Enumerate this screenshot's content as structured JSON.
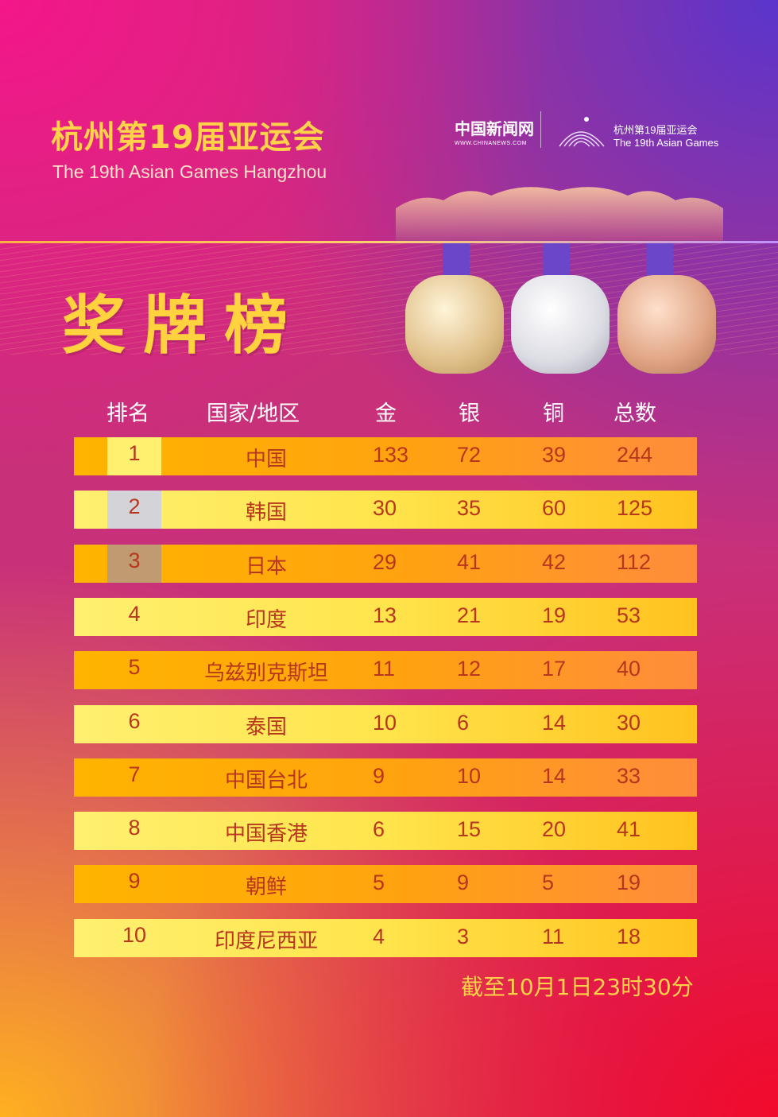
{
  "title_cn": "杭州第19届亚运会",
  "title_en": "The 19th Asian Games Hangzhou",
  "logos": {
    "chinanews": "中国新闻网",
    "chinanews_url": "WWW.CHINANEWS.COM",
    "games_cn": "杭州第19届亚运会",
    "games_en": "The 19th Asian Games"
  },
  "heading": "奖牌榜",
  "columns": [
    "排名",
    "国家/地区",
    "金",
    "银",
    "铜",
    "总数"
  ],
  "rows": [
    {
      "rank": "1",
      "country": "中国",
      "gold": "133",
      "silver": "72",
      "bronze": "39",
      "total": "244"
    },
    {
      "rank": "2",
      "country": "韩国",
      "gold": "30",
      "silver": "35",
      "bronze": "60",
      "total": "125"
    },
    {
      "rank": "3",
      "country": "日本",
      "gold": "29",
      "silver": "41",
      "bronze": "42",
      "total": "112"
    },
    {
      "rank": "4",
      "country": "印度",
      "gold": "13",
      "silver": "21",
      "bronze": "19",
      "total": "53"
    },
    {
      "rank": "5",
      "country": "乌兹别克斯坦",
      "gold": "11",
      "silver": "12",
      "bronze": "17",
      "total": "40"
    },
    {
      "rank": "6",
      "country": "泰国",
      "gold": "10",
      "silver": "6",
      "bronze": "14",
      "total": "30"
    },
    {
      "rank": "7",
      "country": "中国台北",
      "gold": "9",
      "silver": "10",
      "bronze": "14",
      "total": "33"
    },
    {
      "rank": "8",
      "country": "中国香港",
      "gold": "6",
      "silver": "15",
      "bronze": "20",
      "total": "41"
    },
    {
      "rank": "9",
      "country": "朝鲜",
      "gold": "5",
      "silver": "9",
      "bronze": "5",
      "total": "19"
    },
    {
      "rank": "10",
      "country": "印度尼西亚",
      "gold": "4",
      "silver": "3",
      "bronze": "11",
      "total": "18"
    }
  ],
  "rank_colors": {
    "1": "#fff070",
    "2": "#d4d4d8",
    "3": "#c09a70"
  },
  "footnote": "截至10月1日23时30分"
}
